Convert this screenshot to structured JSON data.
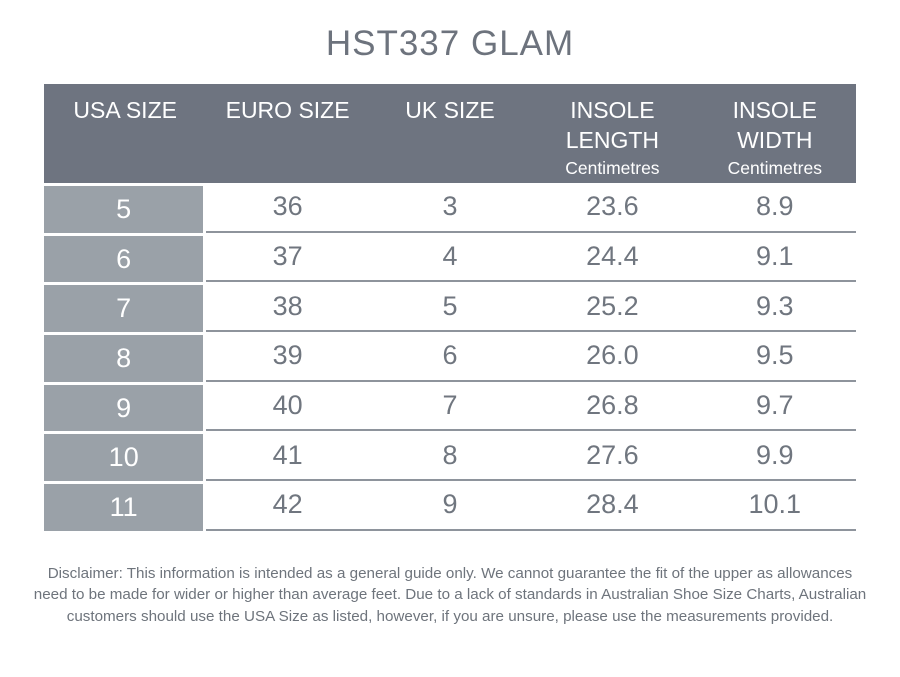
{
  "page": {
    "title": "HST337 GLAM"
  },
  "colors": {
    "header_bg": "#6e7480",
    "label_bg": "#9aa1a8",
    "cell_text": "#70767f",
    "title_text": "#6d737d",
    "line": "#8e949c",
    "disclaimer_text": "#6e747c"
  },
  "table": {
    "headers": [
      {
        "label": "USA SIZE",
        "unit": ""
      },
      {
        "label": "EURO SIZE",
        "unit": ""
      },
      {
        "label": "UK SIZE",
        "unit": ""
      },
      {
        "label": "INSOLE LENGTH",
        "unit": "Centimetres"
      },
      {
        "label": "INSOLE WIDTH",
        "unit": "Centimetres"
      }
    ],
    "rows": [
      [
        "5",
        "36",
        "3",
        "23.6",
        "8.9"
      ],
      [
        "6",
        "37",
        "4",
        "24.4",
        "9.1"
      ],
      [
        "7",
        "38",
        "5",
        "25.2",
        "9.3"
      ],
      [
        "8",
        "39",
        "6",
        "26.0",
        "9.5"
      ],
      [
        "9",
        "40",
        "7",
        "26.8",
        "9.7"
      ],
      [
        "10",
        "41",
        "8",
        "27.6",
        "9.9"
      ],
      [
        "11",
        "42",
        "9",
        "28.4",
        "10.1"
      ]
    ]
  },
  "disclaimer": {
    "lines": [
      "Disclaimer: This information is intended as a general guide only. We cannot guarantee the fit of the upper as allowances",
      "need to be made for wider or higher than average feet. Due to a lack of standards in Australian Shoe Size Charts, Australian",
      "customers should use the USA Size as listed, however, if you are unsure, please use the measurements provided."
    ]
  }
}
